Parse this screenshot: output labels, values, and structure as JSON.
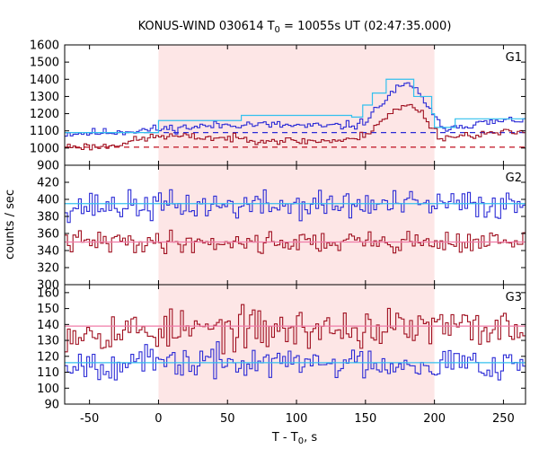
{
  "chart_data": {
    "type": "line",
    "title_main": "KONUS-WIND 030614 T",
    "title_sub": "0",
    "title_rest": " = 10055s UT (02:47:35.000)",
    "xlabel_main": "T - T",
    "xlabel_sub": "0",
    "xlabel_rest": ", s",
    "ylabel": "counts / sec",
    "xlim": [
      -68,
      266
    ],
    "xticks": [
      -50,
      0,
      50,
      100,
      150,
      200,
      250
    ],
    "highlight_interval": [
      0,
      200
    ],
    "colors": {
      "highlight": "#fde6e6",
      "blue": "#2b2bd6",
      "red": "#a01020",
      "light_blue": "#33c0ee",
      "pink_line": "#f07ca8",
      "dashed_blue": "#2b2bd6",
      "dashed_red": "#c01020"
    },
    "panels": [
      {
        "label": "G1",
        "ylim": [
          900,
          1600
        ],
        "yticks": [
          900,
          1000,
          1100,
          1200,
          1300,
          1400,
          1500,
          1600
        ],
        "dashed_levels": [
          {
            "y": 1090,
            "color": "dashed_blue"
          },
          {
            "y": 1005,
            "color": "dashed_red"
          }
        ],
        "series": [
          {
            "color": "blue",
            "seed": 11,
            "noise": 18,
            "profile": [
              [
                -68,
                1085
              ],
              [
                -40,
                1090
              ],
              [
                0,
                1110
              ],
              [
                60,
                1140
              ],
              [
                120,
                1125
              ],
              [
                145,
                1135
              ],
              [
                150,
                1160
              ],
              [
                160,
                1240
              ],
              [
                170,
                1330
              ],
              [
                180,
                1370
              ],
              [
                190,
                1320
              ],
              [
                198,
                1200
              ],
              [
                205,
                1120
              ],
              [
                230,
                1140
              ],
              [
                255,
                1160
              ],
              [
                266,
                1170
              ]
            ]
          },
          {
            "color": "red",
            "seed": 23,
            "noise": 16,
            "profile": [
              [
                -68,
                1010
              ],
              [
                -40,
                1008
              ],
              [
                0,
                1070
              ],
              [
                40,
                1060
              ],
              [
                100,
                1040
              ],
              [
                140,
                1045
              ],
              [
                150,
                1080
              ],
              [
                160,
                1150
              ],
              [
                170,
                1210
              ],
              [
                180,
                1250
              ],
              [
                190,
                1220
              ],
              [
                198,
                1120
              ],
              [
                205,
                1060
              ],
              [
                230,
                1080
              ],
              [
                255,
                1090
              ],
              [
                266,
                1095
              ]
            ]
          },
          {
            "color": "light_blue",
            "steps": [
              [
                -68,
                1090
              ],
              [
                0,
                1160
              ],
              [
                60,
                1190
              ],
              [
                140,
                1180
              ],
              [
                148,
                1250
              ],
              [
                155,
                1320
              ],
              [
                165,
                1400
              ],
              [
                185,
                1300
              ],
              [
                198,
                1200
              ],
              [
                200,
                1120
              ],
              [
                215,
                1170
              ],
              [
                266,
                1170
              ]
            ]
          }
        ]
      },
      {
        "label": "G2",
        "ylim": [
          300,
          440
        ],
        "yticks": [
          300,
          320,
          340,
          360,
          380,
          400,
          420
        ],
        "dashed_levels": [],
        "series": [
          {
            "color": "blue",
            "seed": 37,
            "noise": 12,
            "profile": [
              [
                -68,
                392
              ],
              [
                266,
                394
              ]
            ]
          },
          {
            "color": "red",
            "seed": 41,
            "noise": 9,
            "profile": [
              [
                -68,
                350
              ],
              [
                266,
                350
              ]
            ]
          },
          {
            "color": "light_blue",
            "steps": [
              [
                -68,
                395
              ],
              [
                266,
                395
              ]
            ]
          },
          {
            "color": "pink_line",
            "steps": [
              [
                -68,
                350
              ],
              [
                266,
                350
              ]
            ]
          }
        ]
      },
      {
        "label": "G3",
        "ylim": [
          90,
          165
        ],
        "yticks": [
          90,
          100,
          110,
          120,
          130,
          140,
          150,
          160
        ],
        "dashed_levels": [],
        "series": [
          {
            "color": "red",
            "seed": 53,
            "noise": 9,
            "profile": [
              [
                -68,
                136
              ],
              [
                266,
                138
              ]
            ]
          },
          {
            "color": "blue",
            "seed": 67,
            "noise": 7,
            "profile": [
              [
                -68,
                116
              ],
              [
                266,
                116
              ]
            ]
          },
          {
            "color": "light_blue",
            "steps": [
              [
                -68,
                116
              ],
              [
                266,
                116
              ]
            ]
          },
          {
            "color": "pink_line",
            "steps": [
              [
                -68,
                139
              ],
              [
                266,
                139
              ]
            ]
          }
        ]
      }
    ]
  }
}
